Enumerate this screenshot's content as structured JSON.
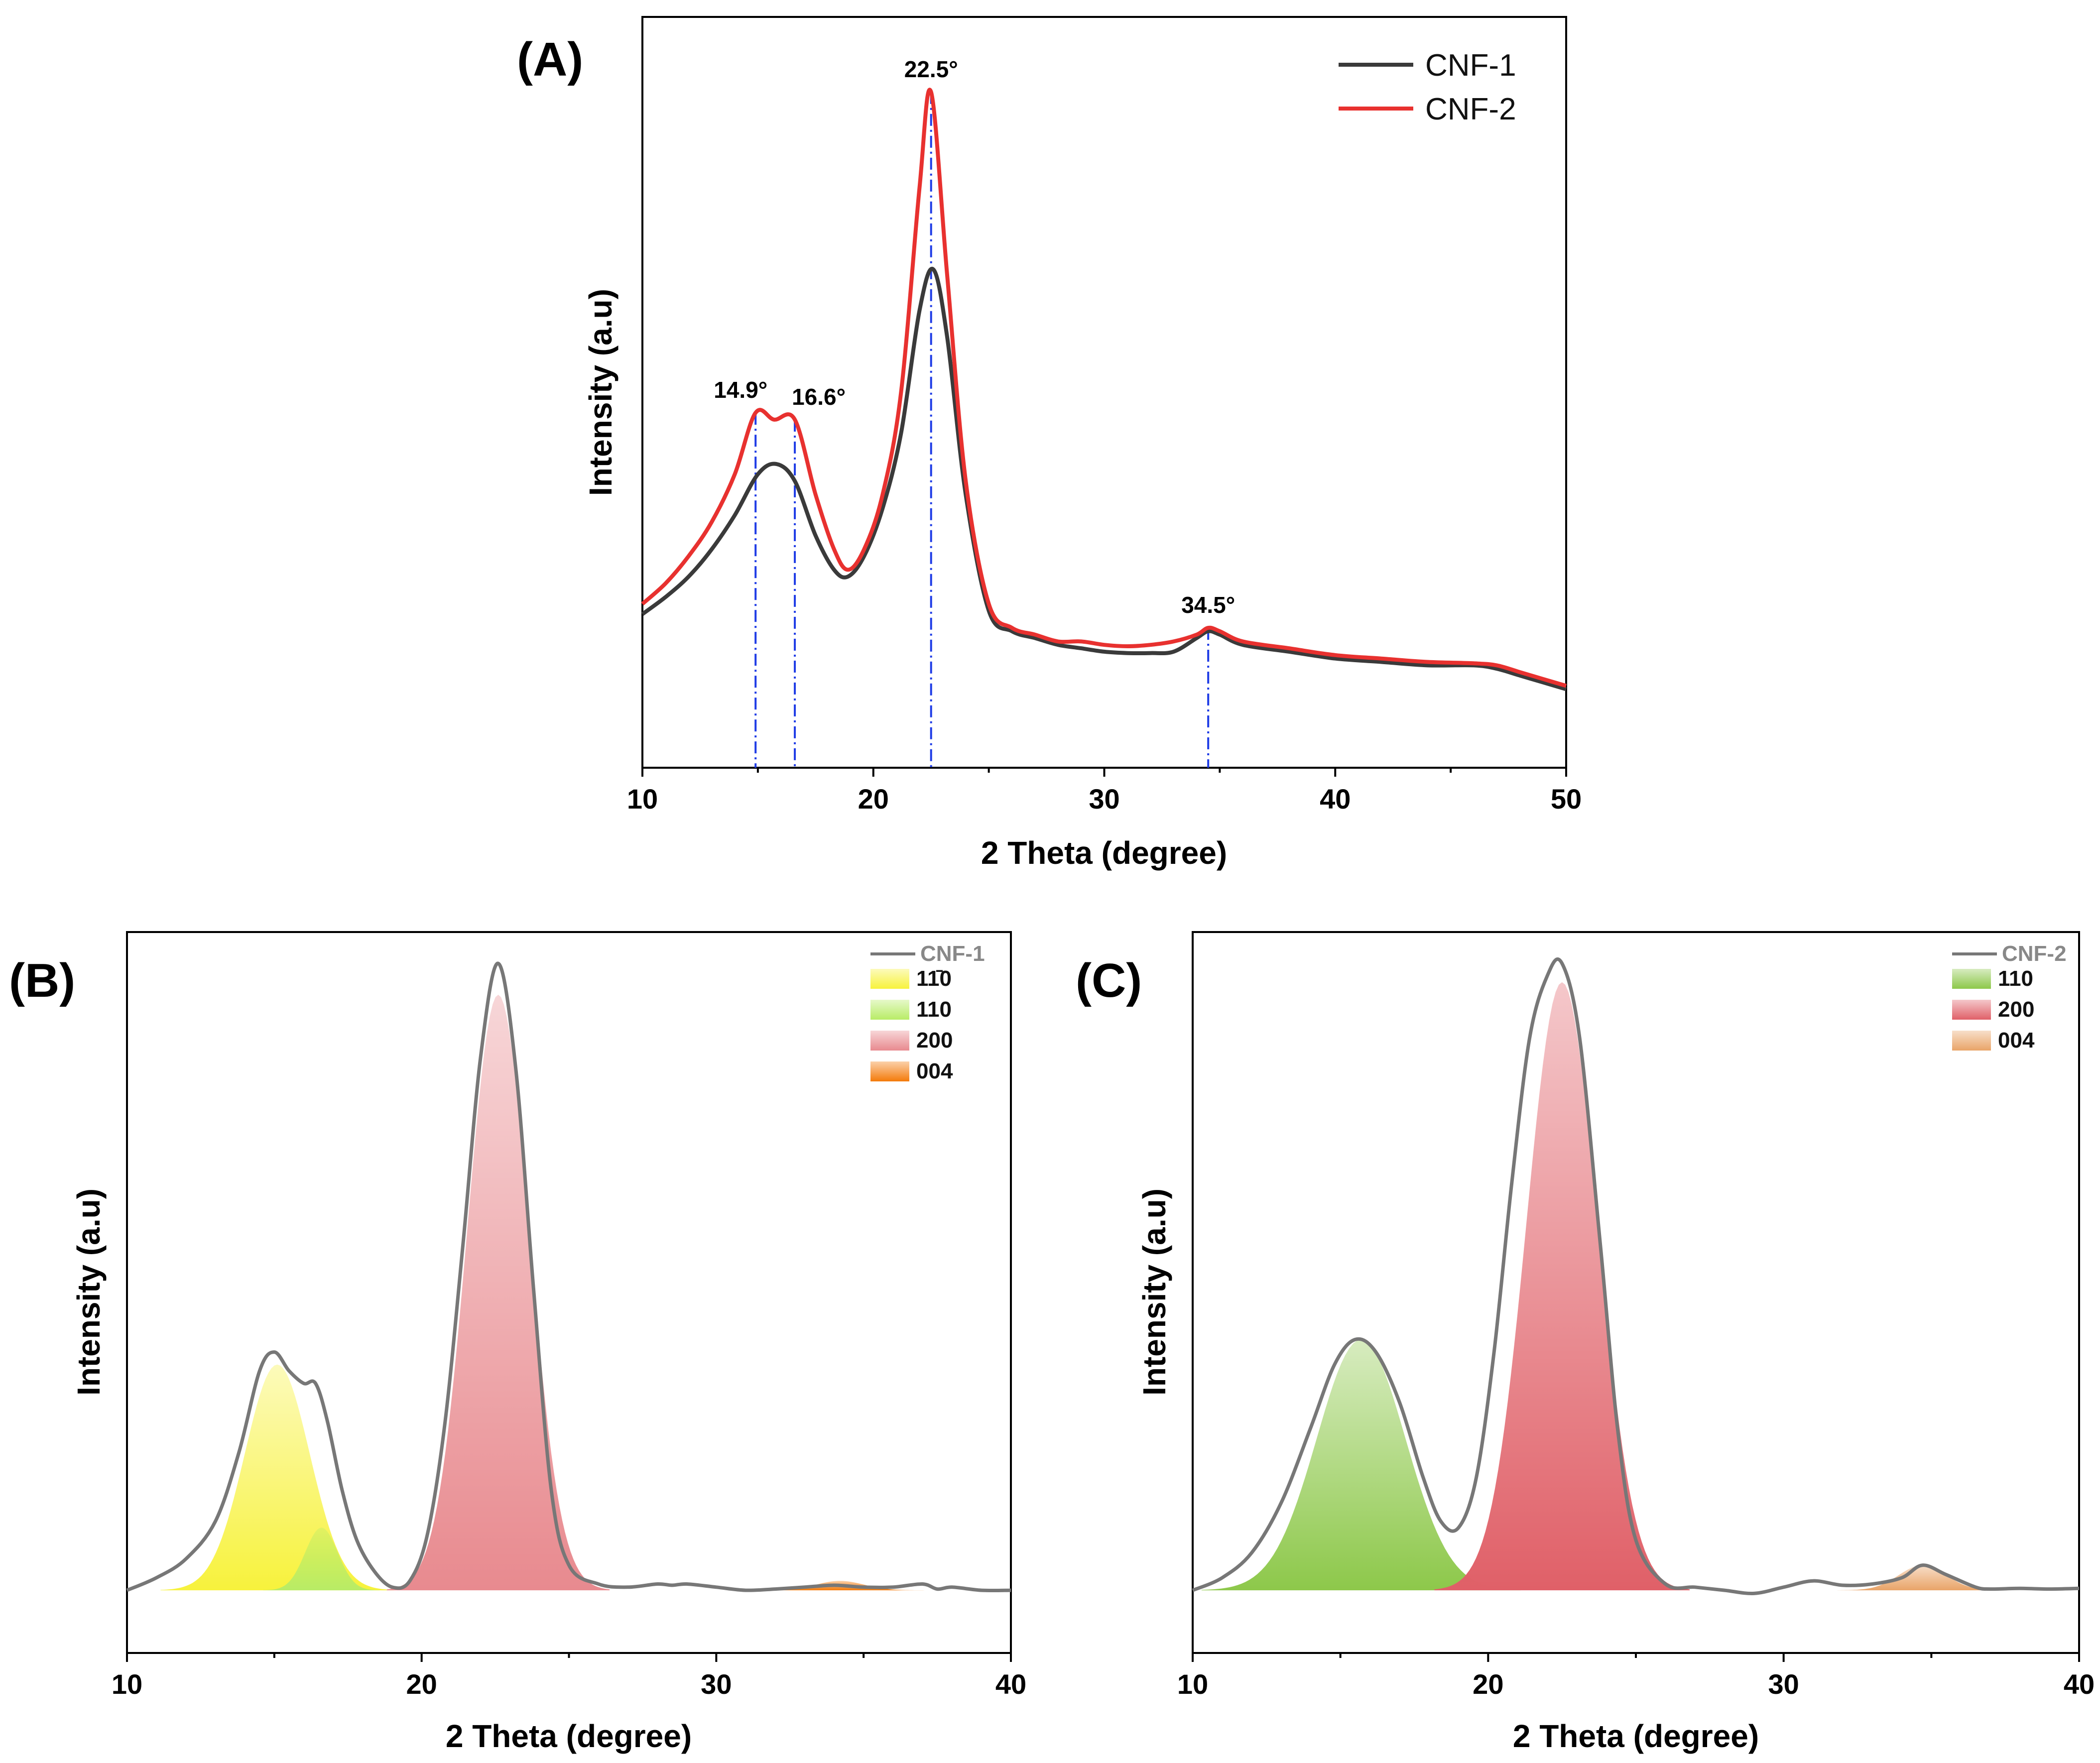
{
  "chart_data": [
    {
      "panel": "(A)",
      "type": "line",
      "xlabel": "2 Theta (degree)",
      "ylabel": "Intensity (a.u)",
      "xlim": [
        10,
        50
      ],
      "ylim": [
        0,
        110
      ],
      "xticks": [
        10,
        20,
        30,
        40,
        50
      ],
      "legend_position": "top-right",
      "grid": false,
      "series": [
        {
          "name": "CNF-1",
          "color": "#3a3a3a",
          "x": [
            10,
            11,
            12,
            13,
            14,
            15,
            15.8,
            16.6,
            17.5,
            18.3,
            18.9,
            19.6,
            20.4,
            21.2,
            22,
            22.6,
            23.2,
            24,
            25,
            26,
            27,
            28,
            29,
            30,
            31,
            32,
            33,
            34,
            34.5,
            35,
            36,
            38,
            40,
            42,
            44,
            46,
            47,
            48,
            49,
            50
          ],
          "y": [
            22.5,
            25,
            28,
            32,
            37,
            43,
            44.5,
            42,
            34,
            29,
            28,
            31,
            38,
            49,
            67,
            73,
            63,
            40,
            23,
            20,
            19,
            18,
            17.5,
            17,
            16.8,
            16.8,
            17,
            19,
            20,
            19.5,
            18,
            17,
            16,
            15.5,
            15,
            15,
            14.5,
            13.5,
            12.5,
            11.5
          ]
        },
        {
          "name": "CNF-2",
          "color": "#e8312f",
          "x": [
            10,
            11,
            12,
            13,
            14,
            14.9,
            15.7,
            16.6,
            17.5,
            18.3,
            18.9,
            19.6,
            20.4,
            21.2,
            22,
            22.5,
            23.2,
            24,
            25,
            26,
            27,
            28,
            29,
            30,
            31,
            32,
            33,
            34,
            34.5,
            35,
            36,
            38,
            40,
            42,
            44,
            46,
            47,
            48,
            49,
            50
          ],
          "y": [
            24,
            27,
            31,
            36,
            43,
            52,
            51,
            51,
            40,
            32,
            29,
            32,
            40,
            55,
            85,
            99,
            72,
            42,
            24,
            20.5,
            19.5,
            18.5,
            18.5,
            18,
            17.8,
            18,
            18.5,
            19.5,
            20.5,
            20,
            18.5,
            17.5,
            16.5,
            16,
            15.5,
            15.3,
            15,
            14,
            13,
            12
          ]
        }
      ],
      "annotations": [
        {
          "text": "14.9°",
          "x": 14.9,
          "y": 52
        },
        {
          "text": "16.6°",
          "x": 16.6,
          "y": 51
        },
        {
          "text": "22.5°",
          "x": 22.5,
          "y": 99
        },
        {
          "text": "34.5°",
          "x": 34.5,
          "y": 20.5
        }
      ]
    },
    {
      "panel": "(B)",
      "type": "area",
      "xlabel": "2 Theta (degree)",
      "ylabel": "Intensity (a.u)",
      "xlim": [
        10,
        40
      ],
      "ylim": [
        -10,
        105
      ],
      "xticks": [
        10,
        20,
        30,
        40
      ],
      "legend_position": "top-right",
      "grid": false,
      "line": {
        "name": "CNF-1",
        "color": "#777777",
        "x": [
          10,
          11,
          12,
          13,
          13.8,
          14.5,
          15,
          15.5,
          16,
          16.4,
          16.8,
          17.3,
          17.8,
          18.4,
          19,
          19.6,
          20.2,
          20.8,
          21.4,
          22,
          22.6,
          23.2,
          23.8,
          24.4,
          25,
          26,
          27,
          28,
          28.5,
          29,
          30,
          31,
          32,
          33,
          34,
          35,
          36,
          37,
          37.5,
          38,
          39,
          40
        ],
        "y": [
          0,
          2,
          5,
          11,
          22,
          35,
          38,
          35,
          33,
          33,
          27,
          16,
          8,
          3,
          0.5,
          1.5,
          9,
          27,
          55,
          85,
          100,
          83,
          48,
          16,
          4,
          1,
          0.5,
          1,
          0.8,
          1,
          0.5,
          0,
          0.2,
          0.5,
          0.8,
          0.5,
          0.5,
          1,
          0.2,
          0.5,
          0,
          0
        ]
      },
      "components": [
        {
          "name": "11̄0",
          "center": 15.1,
          "sigma": 1.1,
          "height": 36,
          "color": "#f7f23c"
        },
        {
          "name": "110",
          "center": 16.6,
          "sigma": 0.55,
          "height": 10,
          "color": "#b8ec66"
        },
        {
          "name": "200",
          "center": 22.6,
          "sigma": 1.05,
          "height": 95,
          "color": "#e88a8f"
        },
        {
          "name": "004",
          "center": 34.2,
          "sigma": 0.8,
          "height": 1.5,
          "color": "#f47a0a"
        }
      ]
    },
    {
      "panel": "(C)",
      "type": "area",
      "xlabel": "2 Theta (degree)",
      "ylabel": "Intensity (a.u)",
      "xlim": [
        10,
        40
      ],
      "ylim": [
        -10,
        105
      ],
      "xticks": [
        10,
        20,
        30,
        40
      ],
      "legend_position": "top-right",
      "grid": false,
      "line": {
        "name": "CNF-2",
        "color": "#777777",
        "x": [
          10,
          11,
          12,
          13,
          14,
          14.8,
          15.5,
          16.2,
          17,
          17.8,
          18.4,
          19,
          19.6,
          20.2,
          20.8,
          21.4,
          22,
          22.5,
          23.1,
          23.8,
          24.4,
          25,
          26,
          27,
          28,
          29,
          30,
          31,
          32,
          33,
          34,
          34.7,
          35.5,
          36.5,
          37,
          38,
          39,
          40
        ],
        "y": [
          0,
          2,
          6,
          14,
          26,
          36,
          40,
          38,
          30,
          18,
          11,
          10,
          18,
          38,
          65,
          88,
          98,
          100,
          88,
          55,
          25,
          8,
          1,
          0.5,
          0,
          -0.5,
          0.5,
          1.5,
          0.8,
          1,
          2,
          4,
          2.5,
          0.5,
          0.2,
          0.3,
          0.2,
          0.3
        ]
      },
      "components": [
        {
          "name": "110",
          "center": 15.7,
          "sigma": 1.5,
          "height": 40,
          "color": "#8dc84a"
        },
        {
          "name": "200",
          "center": 22.5,
          "sigma": 1.2,
          "height": 97,
          "color": "#e06068"
        },
        {
          "name": "004",
          "center": 34.7,
          "sigma": 0.8,
          "height": 4,
          "color": "#e9a468"
        }
      ]
    }
  ]
}
